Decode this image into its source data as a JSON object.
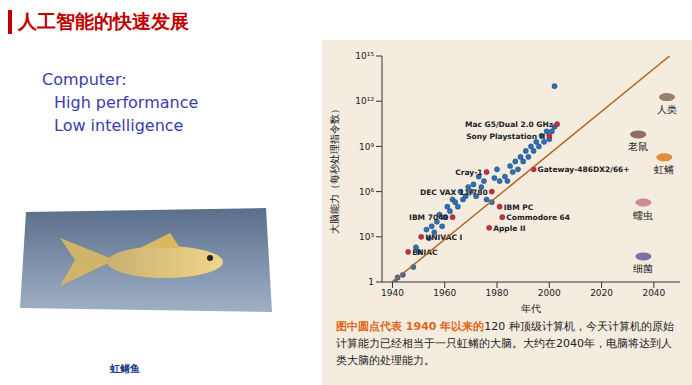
{
  "slide": {
    "title": "人工智能的快速发展",
    "lines": [
      "Computer:",
      "High performance",
      "Low intelligence"
    ],
    "image_caption": "虹鳉鱼",
    "caption": {
      "highlight": "图中圆点代表 1940 年以来的",
      "text": "120 种顶级计算机，今天计算机的原始计算能力已经相当于一只虹鳉的大脑。大约在2040年，电脑将达到人类大脑的处理能力。"
    }
  },
  "chart_data": {
    "type": "scatter",
    "x_label": "年代",
    "y_label": "大脑能力（每秒处理指令数）",
    "log": "y",
    "grid": false,
    "xlim": [
      1936,
      2050
    ],
    "xticks": [
      1940,
      1960,
      1980,
      2000,
      2020,
      2040
    ],
    "ylim": [
      1,
      1000000000000000.0
    ],
    "yticks": [
      1,
      {
        "value": 1000,
        "label": "10³"
      },
      {
        "value": 1000000,
        "label": "10⁶"
      },
      {
        "value": 1000000000,
        "label": "10⁹"
      },
      {
        "value": 1000000000000,
        "label": "10¹²"
      },
      {
        "value": 1000000000000000.0,
        "label": "10¹⁵"
      }
    ],
    "series": [
      {
        "type": "scatter",
        "color": "#2f6db5",
        "marker": "circle",
        "x": [
          1941,
          1942,
          1944,
          1948,
          1949,
          1950,
          1953,
          1954,
          1955,
          1956,
          1957,
          1958,
          1959,
          1960,
          1961,
          1962,
          1963,
          1964,
          1965,
          1966,
          1967,
          1968,
          1969,
          1970,
          1971,
          1972,
          1973,
          1974,
          1975,
          1976,
          1978,
          1979,
          1980,
          1981,
          1983,
          1984,
          1985,
          1986,
          1987,
          1988,
          1989,
          1990,
          1991,
          1992,
          1993,
          1994,
          1995,
          1996,
          1997,
          1998,
          1999,
          2000,
          2001,
          2002,
          2002
        ],
        "values": [
          1,
          2,
          3,
          10,
          200,
          100,
          3000,
          800,
          5000,
          2000,
          10000,
          30000,
          5000,
          20000,
          100000,
          50000,
          300000,
          200000,
          100000,
          1000000,
          300000,
          500000,
          2000000,
          1000000,
          3000000,
          500000,
          10000000,
          2000000,
          5000000,
          300000,
          200000,
          8000000,
          30000000,
          5000000,
          10000000,
          5000000,
          50000000,
          20000000,
          100000000,
          30000000,
          200000000,
          100000000,
          500000000,
          200000000,
          1000000000,
          500000000,
          2000000000,
          1000000000,
          5000000000,
          2000000000,
          10000000000,
          3000000000,
          10000000000,
          10000000000000,
          20000000000
        ]
      },
      {
        "type": "scatter",
        "color": "#d7282f",
        "marker": "circle",
        "x": [
          1946,
          1951,
          1963,
          1977,
          1982,
          1981,
          1978,
          1976,
          1994,
          2000,
          2003
        ],
        "values": [
          100,
          1000,
          20000,
          4000,
          20000,
          100000,
          1000000,
          20000000,
          30000000,
          5000000000,
          30000000000
        ],
        "labels": [
          "ENIAC",
          "UNIVAC I",
          "IBM 7040",
          "Apple II",
          "Commodore 64",
          "IBM PC",
          "DEC VAX 11/780",
          "Cray-1",
          "Gateway-486DX2/66+",
          "Sony Playstation II",
          "Mac G5/Dual 2.0 GHz"
        ]
      },
      {
        "type": "line",
        "color": "#b5651d",
        "x": [
          1940,
          2046
        ],
        "values": [
          1,
          1000000000000000.0
        ]
      }
    ],
    "annotations": [
      {
        "text": "人类",
        "x": 2045,
        "y": 300000000000
      },
      {
        "text": "老鼠",
        "x": 2034,
        "y": 1000000000
      },
      {
        "text": "虹鳉",
        "x": 2044,
        "y": 30000000
      },
      {
        "text": "蠕虫",
        "x": 2036,
        "y": 30000
      },
      {
        "text": "细菌",
        "x": 2036,
        "y": 8
      }
    ]
  }
}
